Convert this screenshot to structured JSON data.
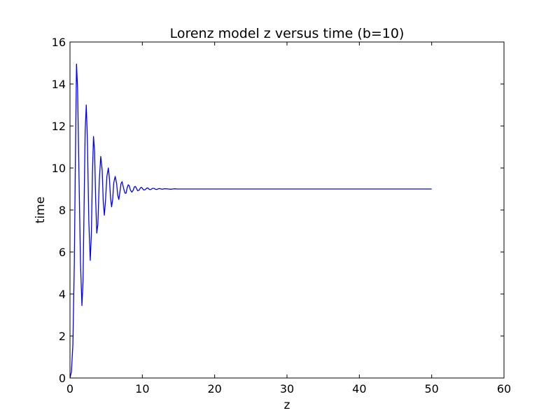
{
  "chart_data": {
    "type": "line",
    "title": "Lorenz model z versus time (b=10)",
    "xlabel": "z",
    "ylabel": "time",
    "xlim": [
      0,
      60
    ],
    "ylim": [
      0,
      16
    ],
    "x_ticks": [
      0,
      10,
      20,
      30,
      40,
      50,
      60
    ],
    "y_ticks": [
      0,
      2,
      4,
      6,
      8,
      10,
      12,
      14,
      16
    ],
    "x_tick_labels": [
      "0",
      "10",
      "20",
      "30",
      "40",
      "50",
      "60"
    ],
    "y_tick_labels": [
      "0",
      "2",
      "4",
      "6",
      "8",
      "10",
      "12",
      "14",
      "16"
    ],
    "grid": false,
    "series": [
      {
        "color": "#0000ff",
        "x": [
          0,
          0.2,
          0.4,
          0.6,
          0.75,
          0.9,
          1.05,
          1.25,
          1.45,
          1.65,
          1.8,
          1.95,
          2.1,
          2.25,
          2.4,
          2.6,
          2.8,
          2.95,
          3.1,
          3.25,
          3.4,
          3.55,
          3.7,
          3.85,
          4.05,
          4.25,
          4.45,
          4.6,
          4.75,
          4.9,
          5.1,
          5.3,
          5.45,
          5.6,
          5.75,
          5.9,
          6.05,
          6.25,
          6.45,
          6.6,
          6.75,
          6.9,
          7.05,
          7.2,
          7.4,
          7.6,
          7.75,
          7.9,
          8.05,
          8.2,
          8.35,
          8.55,
          8.75,
          8.9,
          9.05,
          9.2,
          9.35,
          9.55,
          9.75,
          9.9,
          10.05,
          10.2,
          10.4,
          10.6,
          10.75,
          10.9,
          11.05,
          11.2,
          11.4,
          11.6,
          11.8,
          12.0,
          12.2,
          12.4,
          12.6,
          12.8,
          13.0,
          13.3,
          13.6,
          13.9,
          14.2,
          14.5,
          14.8,
          15.1,
          15.4,
          15.7,
          16.0,
          16.3,
          16.6,
          17.0,
          17.4,
          17.8,
          18.2,
          18.6,
          19.0,
          20.0,
          25.0,
          30.0,
          35.0,
          40.0,
          45.0,
          50.0
        ],
        "y": [
          0,
          0.3,
          1.6,
          5.5,
          10.5,
          14.95,
          13.8,
          9.5,
          5.5,
          3.45,
          4.6,
          8.2,
          11.8,
          13.0,
          11.4,
          7.5,
          5.6,
          6.8,
          9.7,
          11.5,
          10.8,
          8.5,
          6.9,
          7.3,
          9.4,
          10.55,
          9.9,
          8.4,
          7.75,
          8.4,
          9.6,
          10.0,
          9.5,
          8.6,
          8.15,
          8.5,
          9.3,
          9.6,
          9.25,
          8.7,
          8.5,
          8.85,
          9.25,
          9.35,
          9.05,
          8.8,
          8.8,
          9.05,
          9.2,
          9.15,
          8.95,
          8.85,
          8.95,
          9.1,
          9.12,
          9.02,
          8.92,
          8.94,
          9.06,
          9.08,
          9.01,
          8.95,
          8.97,
          9.04,
          9.05,
          9.0,
          8.97,
          8.98,
          9.03,
          9.03,
          8.99,
          8.98,
          9.01,
          9.02,
          9.0,
          8.99,
          9.01,
          9.01,
          9.0,
          8.99,
          9.0,
          9.01,
          9.0,
          9.0,
          9.0,
          9.0,
          9.0,
          9.0,
          9.0,
          9.0,
          9.0,
          9.0,
          9.0,
          9.0,
          9.0,
          9.0,
          9.0,
          9.0,
          9.0,
          9.0,
          9.0,
          9.0
        ]
      }
    ]
  }
}
